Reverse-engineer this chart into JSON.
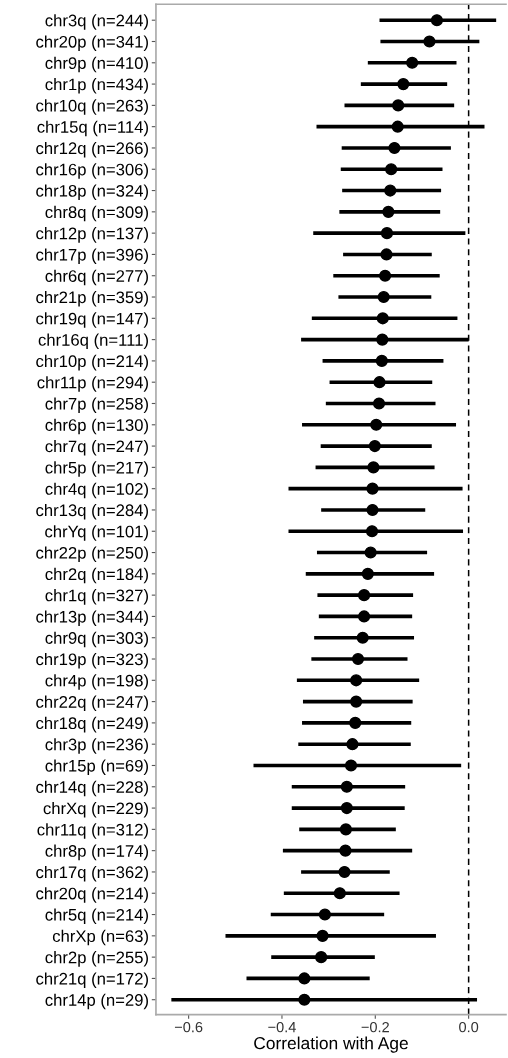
{
  "chart_data": {
    "type": "scatter",
    "orientation": "horizontal",
    "xlabel": "Correlation with Age",
    "categories": [
      "chr3q (n=244)",
      "chr20p (n=341)",
      "chr9p (n=410)",
      "chr1p (n=434)",
      "chr10q (n=263)",
      "chr15q (n=114)",
      "chr12q (n=266)",
      "chr16p (n=306)",
      "chr18p (n=324)",
      "chr8q (n=309)",
      "chr12p (n=137)",
      "chr17p (n=396)",
      "chr6q (n=277)",
      "chr21p (n=359)",
      "chr19q (n=147)",
      "chr16q (n=111)",
      "chr10p (n=214)",
      "chr11p (n=294)",
      "chr7p (n=258)",
      "chr6p (n=130)",
      "chr7q (n=247)",
      "chr5p (n=217)",
      "chr4q (n=102)",
      "chr13q (n=284)",
      "chrYq (n=101)",
      "chr22p (n=250)",
      "chr2q (n=184)",
      "chr1q (n=327)",
      "chr13p (n=344)",
      "chr9q (n=303)",
      "chr19p (n=323)",
      "chr4p (n=198)",
      "chr22q (n=247)",
      "chr18q (n=249)",
      "chr3p (n=236)",
      "chr15p (n=69)",
      "chr14q (n=228)",
      "chrXq (n=229)",
      "chr11q (n=312)",
      "chr8p (n=174)",
      "chr17q (n=362)",
      "chr20q (n=214)",
      "chr5q (n=214)",
      "chrXp (n=63)",
      "chr2p (n=255)",
      "chr21q (n=172)",
      "chr14p (n=29)"
    ],
    "values": [
      -0.068,
      -0.084,
      -0.121,
      -0.14,
      -0.151,
      -0.152,
      -0.159,
      -0.166,
      -0.168,
      -0.172,
      -0.175,
      -0.176,
      -0.179,
      -0.182,
      -0.184,
      -0.185,
      -0.186,
      -0.191,
      -0.192,
      -0.198,
      -0.201,
      -0.204,
      -0.206,
      -0.206,
      -0.207,
      -0.21,
      -0.216,
      -0.224,
      -0.224,
      -0.227,
      -0.237,
      -0.241,
      -0.241,
      -0.243,
      -0.249,
      -0.252,
      -0.261,
      -0.261,
      -0.263,
      -0.264,
      -0.266,
      -0.276,
      -0.308,
      -0.313,
      -0.316,
      -0.352,
      -0.352
    ],
    "errors": [
      [
        -0.191,
        0.059
      ],
      [
        -0.189,
        0.023
      ],
      [
        -0.216,
        -0.026
      ],
      [
        -0.231,
        -0.046
      ],
      [
        -0.266,
        -0.031
      ],
      [
        -0.326,
        0.034
      ],
      [
        -0.272,
        -0.038
      ],
      [
        -0.274,
        -0.056
      ],
      [
        -0.271,
        -0.059
      ],
      [
        -0.277,
        -0.061
      ],
      [
        -0.333,
        -0.007
      ],
      [
        -0.269,
        -0.079
      ],
      [
        -0.29,
        -0.062
      ],
      [
        -0.279,
        -0.08
      ],
      [
        -0.336,
        -0.024
      ],
      [
        -0.359,
        0.0
      ],
      [
        -0.313,
        -0.054
      ],
      [
        -0.298,
        -0.078
      ],
      [
        -0.306,
        -0.071
      ],
      [
        -0.357,
        -0.027
      ],
      [
        -0.317,
        -0.079
      ],
      [
        -0.328,
        -0.073
      ],
      [
        -0.386,
        -0.013
      ],
      [
        -0.316,
        -0.093
      ],
      [
        -0.386,
        -0.012
      ],
      [
        -0.325,
        -0.089
      ],
      [
        -0.349,
        -0.074
      ],
      [
        -0.324,
        -0.119
      ],
      [
        -0.321,
        -0.121
      ],
      [
        -0.331,
        -0.117
      ],
      [
        -0.337,
        -0.131
      ],
      [
        -0.368,
        -0.106
      ],
      [
        -0.355,
        -0.12
      ],
      [
        -0.357,
        -0.123
      ],
      [
        -0.365,
        -0.124
      ],
      [
        -0.461,
        -0.016
      ],
      [
        -0.379,
        -0.136
      ],
      [
        -0.379,
        -0.137
      ],
      [
        -0.363,
        -0.156
      ],
      [
        -0.398,
        -0.121
      ],
      [
        -0.359,
        -0.169
      ],
      [
        -0.396,
        -0.148
      ],
      [
        -0.424,
        -0.181
      ],
      [
        -0.521,
        -0.07
      ],
      [
        -0.423,
        -0.201
      ],
      [
        -0.476,
        -0.212
      ],
      [
        -0.637,
        0.018
      ]
    ],
    "color": "#000000",
    "marker": "circle",
    "xlim": [
      -0.67,
      0.08
    ],
    "xticks": [
      {
        "value": -0.6,
        "label": "−0.6"
      },
      {
        "value": -0.4,
        "label": "−0.4"
      },
      {
        "value": -0.2,
        "label": "−0.2"
      },
      {
        "value": 0,
        "label": "0.0"
      }
    ],
    "ref_lines": [
      {
        "axis": "x",
        "value": 0,
        "color": "#000000",
        "line_style": "dashed"
      }
    ],
    "grid": false
  }
}
